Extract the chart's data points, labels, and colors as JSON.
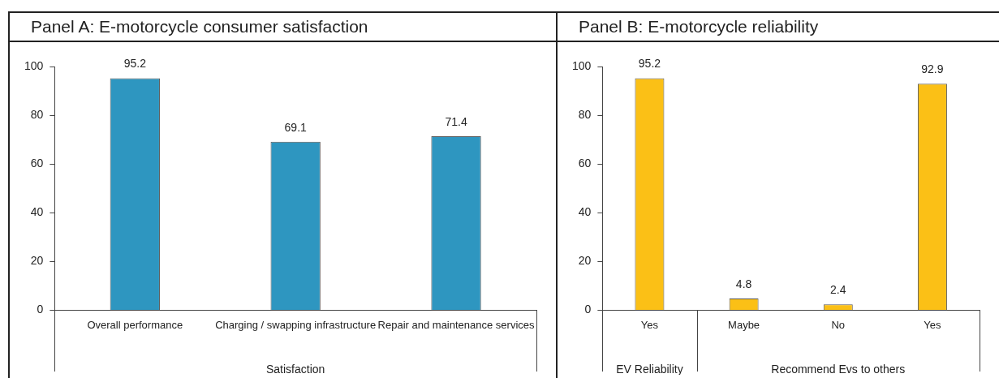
{
  "chart_data": [
    {
      "type": "bar",
      "title": "Panel A: E-motorcycle consumer satisfaction",
      "xlabel": "Satisfaction",
      "categories": [
        "Overall performance",
        "Charging / swapping infrastructure",
        "Repair and maintenance services"
      ],
      "values": [
        95.2,
        69.1,
        71.4
      ],
      "color": "#2e96c0",
      "ylim": [
        0,
        100
      ],
      "yticks": [
        0,
        20,
        40,
        60,
        80,
        100
      ],
      "data_labels": true
    },
    {
      "type": "bar",
      "title": "Panel B: E-motorcycle reliability",
      "categories": [
        "Yes",
        "Maybe",
        "No",
        "Yes"
      ],
      "values": [
        95.2,
        4.8,
        2.4,
        92.9
      ],
      "color": "#fbc016",
      "ylim": [
        0,
        100
      ],
      "yticks": [
        0,
        20,
        40,
        60,
        80,
        100
      ],
      "data_labels": true,
      "annotations": [
        "EV Reliability",
        "Recommend Evs to others"
      ]
    }
  ]
}
